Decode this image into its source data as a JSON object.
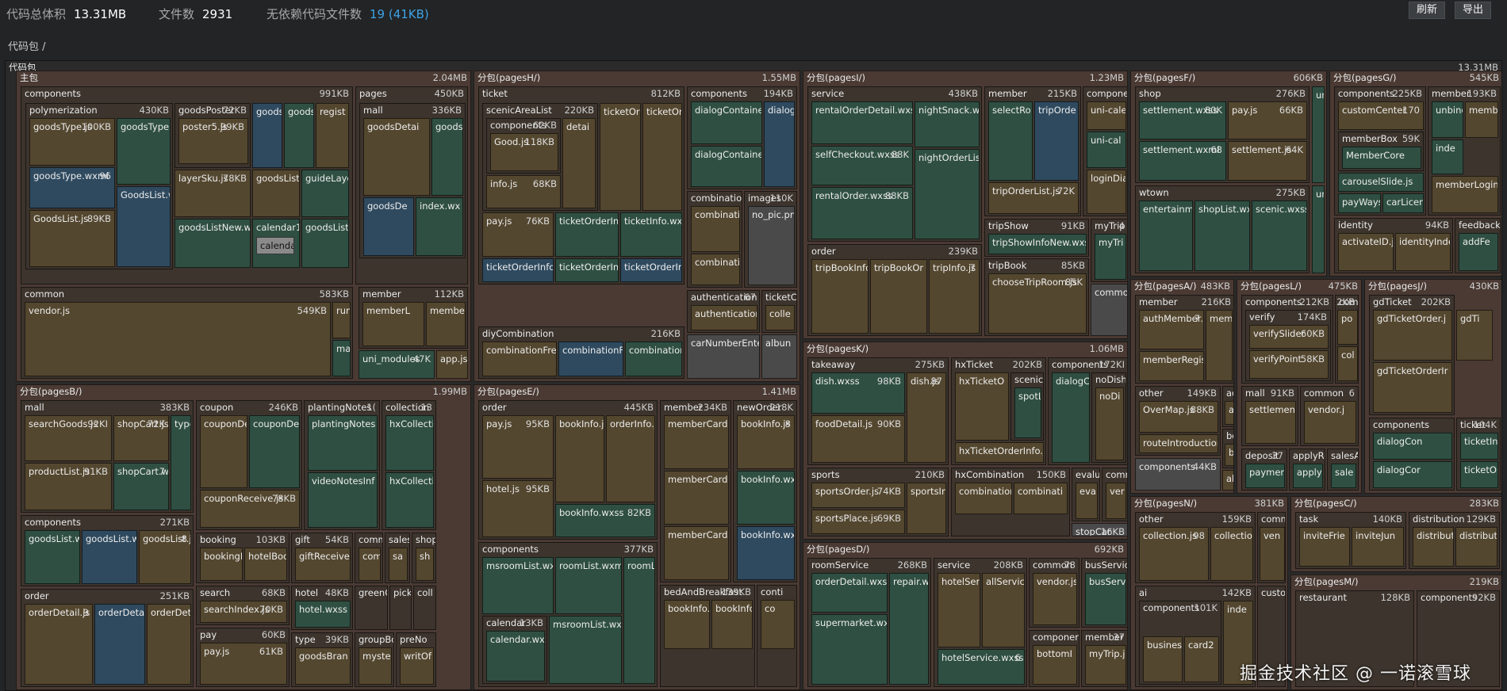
{
  "header": {
    "total_label": "代码总体积",
    "total_value": "13.31MB",
    "files_label": "文件数",
    "files_value": "2931",
    "nodep_label": "无依赖代码文件数",
    "nodep_value": "19 (41KB)",
    "refresh": "刷新",
    "export": "导出"
  },
  "breadcrumb": "代码包 /",
  "root": {
    "name": "代码包",
    "size": "13.31MB"
  },
  "colors": {
    "green": "#2f4f43",
    "ochre": "#54472f",
    "blue": "#2f4a5f",
    "frame_main": "#4a3a33",
    "frame_sub": "#3c342d"
  },
  "packages": [
    {
      "id": "main",
      "name": "主包",
      "size": "2.04MB"
    },
    {
      "id": "pagesH",
      "name": "分包(pagesH/)",
      "size": "1.55MB"
    },
    {
      "id": "pagesI",
      "name": "分包(pagesI/)",
      "size": "1.23MB"
    },
    {
      "id": "pagesF",
      "name": "分包(pagesF/)",
      "size": "606KB"
    },
    {
      "id": "pagesG",
      "name": "分包(pagesG/)",
      "size": "545KB"
    },
    {
      "id": "pagesB",
      "name": "分包(pagesB/)",
      "size": "1.99MB"
    },
    {
      "id": "pagesE",
      "name": "分包(pagesE/)",
      "size": "1.41MB"
    },
    {
      "id": "pagesK",
      "name": "分包(pagesK/)",
      "size": "1.06MB"
    },
    {
      "id": "pagesD",
      "name": "分包(pagesD/)",
      "size": "692KB"
    },
    {
      "id": "pagesA",
      "name": "分包(pagesA/)",
      "size": "483KB"
    },
    {
      "id": "pagesL",
      "name": "分包(pagesL/)",
      "size": "475KB"
    },
    {
      "id": "pagesJ",
      "name": "分包(pagesJ/)",
      "size": "430KB"
    },
    {
      "id": "pagesN",
      "name": "分包(pagesN/)",
      "size": "381KB"
    },
    {
      "id": "pagesC",
      "name": "分包(pagesC/)",
      "size": "283KB"
    },
    {
      "id": "pagesM",
      "name": "分包(pagesM/)",
      "size": "219KB"
    }
  ],
  "groups": [
    {
      "name": "components",
      "size": "991KB"
    },
    {
      "name": "polymerization",
      "size": "430KB"
    },
    {
      "name": "goodsPoster",
      "size": "72KB"
    },
    {
      "name": "common",
      "size": "583KB"
    },
    {
      "name": "pages",
      "size": "450KB"
    },
    {
      "name": "mall",
      "size": "336KB"
    },
    {
      "name": "member",
      "size": "112KB"
    },
    {
      "name": "ticket",
      "size": "812KB"
    },
    {
      "name": "scenicAreaList",
      "size": "220KB"
    },
    {
      "name": "components",
      "size": "62KB"
    },
    {
      "name": "components",
      "size": "194KB"
    },
    {
      "name": "combination",
      "size": ""
    },
    {
      "name": "images",
      "size": "110K"
    },
    {
      "name": "authentication",
      "size": "67"
    },
    {
      "name": "ticketC",
      "size": ""
    },
    {
      "name": "diyCombination",
      "size": "216KB"
    },
    {
      "name": "service",
      "size": "438KB"
    },
    {
      "name": "member",
      "size": "215KB"
    },
    {
      "name": "component",
      "size": ""
    },
    {
      "name": "order",
      "size": "239KB"
    },
    {
      "name": "tripShow",
      "size": "91KB"
    },
    {
      "name": "myTrip",
      "size": "4"
    },
    {
      "name": "tripBook",
      "size": "85KB"
    },
    {
      "name": "shop",
      "size": "276KB"
    },
    {
      "name": "wtown",
      "size": "275KB"
    },
    {
      "name": "components",
      "size": "225KB"
    },
    {
      "name": "memberBox",
      "size": "59K"
    },
    {
      "name": "member",
      "size": "193KB"
    },
    {
      "name": "identity",
      "size": "94KB"
    },
    {
      "name": "feedback",
      "size": ""
    },
    {
      "name": "mall",
      "size": "383KB"
    },
    {
      "name": "coupon",
      "size": "246KB"
    },
    {
      "name": "plantingNotes",
      "size": "1("
    },
    {
      "name": "collection",
      "size": "13"
    },
    {
      "name": "components",
      "size": "271KB"
    },
    {
      "name": "booking",
      "size": "103KB"
    },
    {
      "name": "gift",
      "size": "54KB"
    },
    {
      "name": "comm",
      "size": ""
    },
    {
      "name": "sales",
      "size": ""
    },
    {
      "name": "shop",
      "size": ""
    },
    {
      "name": "search",
      "size": "68KB"
    },
    {
      "name": "hotel",
      "size": "48KB"
    },
    {
      "name": "greenCl",
      "size": ""
    },
    {
      "name": "pick",
      "size": ""
    },
    {
      "name": "coll",
      "size": ""
    },
    {
      "name": "order",
      "size": "251KB"
    },
    {
      "name": "pay",
      "size": "60KB"
    },
    {
      "name": "type",
      "size": "39KB"
    },
    {
      "name": "groupBo",
      "size": ""
    },
    {
      "name": "preNo",
      "size": ""
    },
    {
      "name": "order",
      "size": "445KB"
    },
    {
      "name": "member",
      "size": "234KB"
    },
    {
      "name": "newOrder",
      "size": "218K"
    },
    {
      "name": "components",
      "size": "377KB"
    },
    {
      "name": "calendar",
      "size": "13KB"
    },
    {
      "name": "bedAndBreakfast",
      "size": "139KB"
    },
    {
      "name": "conti",
      "size": ""
    },
    {
      "name": "takeaway",
      "size": "275KB"
    },
    {
      "name": "hxTicket",
      "size": "202KB"
    },
    {
      "name": "scenicS",
      "size": ""
    },
    {
      "name": "components",
      "size": "172KI"
    },
    {
      "name": "noDish",
      "size": ""
    },
    {
      "name": "sports",
      "size": "210KB"
    },
    {
      "name": "hxCombination",
      "size": "150KB"
    },
    {
      "name": "evalu",
      "size": ""
    },
    {
      "name": "comm",
      "size": ""
    },
    {
      "name": "roomService",
      "size": "268KB"
    },
    {
      "name": "service",
      "size": "208KB"
    },
    {
      "name": "common",
      "size": "78"
    },
    {
      "name": "busServic",
      "size": ""
    },
    {
      "name": "componer",
      "size": ""
    },
    {
      "name": "member",
      "size": "37"
    },
    {
      "name": "member",
      "size": "216KB"
    },
    {
      "name": "other",
      "size": "149KB"
    },
    {
      "name": "addre",
      "size": ""
    },
    {
      "name": "booke",
      "size": ""
    },
    {
      "name": "components",
      "size": "212KB"
    },
    {
      "name": "verify",
      "size": "174KB"
    },
    {
      "name": "mall",
      "size": "91KB"
    },
    {
      "name": "common",
      "size": "6"
    },
    {
      "name": "deposit",
      "size": "37"
    },
    {
      "name": "applyRe",
      "size": ""
    },
    {
      "name": "salesA",
      "size": ""
    },
    {
      "name": "gdTicket",
      "size": "202KB"
    },
    {
      "name": "components",
      "size": ""
    },
    {
      "name": "ticket",
      "size": "104K"
    },
    {
      "name": "other",
      "size": "159KB"
    },
    {
      "name": "comm",
      "size": ""
    },
    {
      "name": "ai",
      "size": "142KB"
    },
    {
      "name": "components",
      "size": "101K"
    },
    {
      "name": "custo",
      "size": ""
    },
    {
      "name": "task",
      "size": "140KB"
    },
    {
      "name": "distribution",
      "size": "129KB"
    },
    {
      "name": "restaurant",
      "size": "128KB"
    },
    {
      "name": "components",
      "size": "92KB"
    }
  ],
  "leaves": [
    {
      "name": "goodsType.js",
      "size": "100KB"
    },
    {
      "name": "goodsType",
      "size": ""
    },
    {
      "name": "goodsType.wxml",
      "size": "96"
    },
    {
      "name": "GoodsList.w",
      "size": ""
    },
    {
      "name": "GoodsList.js",
      "size": "89KB"
    },
    {
      "name": "poster5.js",
      "size": "99KB"
    },
    {
      "name": "layerSku.js",
      "size": "78KB"
    },
    {
      "name": "goodsListNew.wx",
      "size": ""
    },
    {
      "name": "goods",
      "size": ""
    },
    {
      "name": "goods",
      "size": ""
    },
    {
      "name": "regist",
      "size": ""
    },
    {
      "name": "goodsList",
      "size": ""
    },
    {
      "name": "guideLaye",
      "size": ""
    },
    {
      "name": "calendar1",
      "size": ""
    },
    {
      "name": "calenda",
      "size": ""
    },
    {
      "name": "goodsList",
      "size": ""
    },
    {
      "name": "vendor.js",
      "size": "549KB"
    },
    {
      "name": "run",
      "size": ""
    },
    {
      "name": "ma",
      "size": ""
    },
    {
      "name": "goodsDetai",
      "size": ""
    },
    {
      "name": "goods",
      "size": ""
    },
    {
      "name": "goodsDe",
      "size": ""
    },
    {
      "name": "index.wx",
      "size": ""
    },
    {
      "name": "memberL",
      "size": ""
    },
    {
      "name": "membe",
      "size": ""
    },
    {
      "name": "uni_modules",
      "size": "47K"
    },
    {
      "name": "app.js",
      "size": ""
    },
    {
      "name": "Good.js",
      "size": "118KB"
    },
    {
      "name": "detai",
      "size": ""
    },
    {
      "name": "info.js",
      "size": "68KB"
    },
    {
      "name": "ticketOrd",
      "size": ""
    },
    {
      "name": "ticketOr",
      "size": ""
    },
    {
      "name": "pay.js",
      "size": "76KB"
    },
    {
      "name": "ticketOrderInf",
      "size": ""
    },
    {
      "name": "ticketInfo.wx",
      "size": ""
    },
    {
      "name": "ticketOrderInfo",
      "size": ""
    },
    {
      "name": "ticketOrderInf",
      "size": ""
    },
    {
      "name": "ticketOrderIn",
      "size": ""
    },
    {
      "name": "dialogContaine",
      "size": ""
    },
    {
      "name": "dialog",
      "size": ""
    },
    {
      "name": "dialogContaine",
      "size": ""
    },
    {
      "name": "combinati",
      "size": ""
    },
    {
      "name": "combinati",
      "size": ""
    },
    {
      "name": "no_pic.pn",
      "size": ""
    },
    {
      "name": "authentication.",
      "size": ""
    },
    {
      "name": "colle",
      "size": ""
    },
    {
      "name": "carNumberEnter",
      "size": ""
    },
    {
      "name": "albun",
      "size": ""
    },
    {
      "name": "combinationFree",
      "size": ""
    },
    {
      "name": "combinationFr",
      "size": ""
    },
    {
      "name": "combination",
      "size": ""
    },
    {
      "name": "rentalOrderDetail.wxss",
      "size": ""
    },
    {
      "name": "nightSnack.wx",
      "size": ""
    },
    {
      "name": "selfCheckout.wxss",
      "size": "88K"
    },
    {
      "name": "nightOrderLis",
      "size": ""
    },
    {
      "name": "rentalOrder.wxss",
      "size": "88KB"
    },
    {
      "name": "selectRo",
      "size": ""
    },
    {
      "name": "tripOrde",
      "size": ""
    },
    {
      "name": "tripOrderList.js",
      "size": "72K"
    },
    {
      "name": "uni-calen",
      "size": ""
    },
    {
      "name": "uni-cal",
      "size": ""
    },
    {
      "name": "loginDial",
      "size": ""
    },
    {
      "name": "tripBookInfo",
      "size": ""
    },
    {
      "name": "tripBookOr",
      "size": ""
    },
    {
      "name": "tripInfo.js",
      "size": "7"
    },
    {
      "name": "tripShowInfoNew.wxss",
      "size": ""
    },
    {
      "name": "myTri",
      "size": ""
    },
    {
      "name": "chooseTripRoom.js",
      "size": "85K"
    },
    {
      "name": "commo",
      "size": ""
    },
    {
      "name": "settlement.wxss",
      "size": "80K"
    },
    {
      "name": "pay.js",
      "size": "66KB"
    },
    {
      "name": "settlement.wxml",
      "size": "68"
    },
    {
      "name": "settlement.js",
      "size": "64K"
    },
    {
      "name": "entertainm",
      "size": ""
    },
    {
      "name": "shopList.wx",
      "size": ""
    },
    {
      "name": "scenic.wxss",
      "size": ""
    },
    {
      "name": "customCenter",
      "size": "170"
    },
    {
      "name": "MemberCore",
      "size": ""
    },
    {
      "name": "carouselSlide.js",
      "size": ""
    },
    {
      "name": "payWays",
      "size": ""
    },
    {
      "name": "carLicen",
      "size": ""
    },
    {
      "name": "unbind",
      "size": ""
    },
    {
      "name": "memb",
      "size": ""
    },
    {
      "name": "inde",
      "size": ""
    },
    {
      "name": "memberLogin.j",
      "size": ""
    },
    {
      "name": "activateID.js",
      "size": ""
    },
    {
      "name": "identityInde",
      "size": ""
    },
    {
      "name": "addFe",
      "size": ""
    },
    {
      "name": "searchGoods.js",
      "size": "92KI"
    },
    {
      "name": "shopCart.js",
      "size": "72K"
    },
    {
      "name": "typeL",
      "size": ""
    },
    {
      "name": "productList.js",
      "size": "91KB"
    },
    {
      "name": "shopCart.wxss",
      "size": "7"
    },
    {
      "name": "couponDe",
      "size": ""
    },
    {
      "name": "couponDe",
      "size": ""
    },
    {
      "name": "couponReceive.js",
      "size": "78KB"
    },
    {
      "name": "plantingNotes",
      "size": ""
    },
    {
      "name": "videoNotesInf",
      "size": ""
    },
    {
      "name": "hxCollectio",
      "size": ""
    },
    {
      "name": "hxCollectio",
      "size": ""
    },
    {
      "name": "goodsList.wxss",
      "size": ""
    },
    {
      "name": "goodsList.wx",
      "size": ""
    },
    {
      "name": "goodsList.js",
      "size": "8"
    },
    {
      "name": "bookingI",
      "size": ""
    },
    {
      "name": "hotelBoo",
      "size": ""
    },
    {
      "name": "giftReceive",
      "size": ""
    },
    {
      "name": "com",
      "size": ""
    },
    {
      "name": "sa",
      "size": ""
    },
    {
      "name": "sh",
      "size": ""
    },
    {
      "name": "searchIndex.js",
      "size": "70KB"
    },
    {
      "name": "hotel.wxss",
      "size": ""
    },
    {
      "name": "orderDetail.js",
      "size": "9"
    },
    {
      "name": "orderDetail.w",
      "size": ""
    },
    {
      "name": "orderDetail.",
      "size": ""
    },
    {
      "name": "pay.js",
      "size": "61KB"
    },
    {
      "name": "goodsBran",
      "size": ""
    },
    {
      "name": "mystery",
      "size": ""
    },
    {
      "name": "writOf",
      "size": ""
    },
    {
      "name": "pay.js",
      "size": "95KB"
    },
    {
      "name": "bookInfo.js",
      "size": ""
    },
    {
      "name": "orderInfo.j",
      "size": ""
    },
    {
      "name": "hotel.js",
      "size": "95KB"
    },
    {
      "name": "bookInfo.wxss",
      "size": "82KB"
    },
    {
      "name": "memberCard",
      "size": ""
    },
    {
      "name": "memberCard",
      "size": ""
    },
    {
      "name": "memberCard",
      "size": ""
    },
    {
      "name": "bookInfo.js",
      "size": "8"
    },
    {
      "name": "bookInfo.wx",
      "size": ""
    },
    {
      "name": "bookInfo.wx",
      "size": ""
    },
    {
      "name": "msroomList.wxss",
      "size": ""
    },
    {
      "name": "roomList.wxml",
      "size": ""
    },
    {
      "name": "roomL",
      "size": ""
    },
    {
      "name": "calendar.wxss",
      "size": ""
    },
    {
      "name": "msroomList.wx",
      "size": ""
    },
    {
      "name": "bookInfo.js",
      "size": ""
    },
    {
      "name": "bookInfo.",
      "size": ""
    },
    {
      "name": "co",
      "size": ""
    },
    {
      "name": "dish.wxss",
      "size": "98KB"
    },
    {
      "name": "dish.js",
      "size": "87"
    },
    {
      "name": "foodDetail.js",
      "size": "90KB"
    },
    {
      "name": "hxTicketO",
      "size": ""
    },
    {
      "name": "spotL",
      "size": ""
    },
    {
      "name": "hxTicketOrderInfo.j",
      "size": ""
    },
    {
      "name": "dialogC",
      "size": ""
    },
    {
      "name": "noDi",
      "size": ""
    },
    {
      "name": "sportsOrder.js",
      "size": "74KB"
    },
    {
      "name": "sportsInf",
      "size": ""
    },
    {
      "name": "sportsPlace.js",
      "size": "69KB"
    },
    {
      "name": "combination",
      "size": ""
    },
    {
      "name": "combinati",
      "size": ""
    },
    {
      "name": "eva",
      "size": ""
    },
    {
      "name": "ver",
      "size": ""
    },
    {
      "name": "stopCar",
      "size": "16KB"
    },
    {
      "name": "orderDetail.wxss",
      "size": ""
    },
    {
      "name": "repair.w",
      "size": ""
    },
    {
      "name": "supermarket.wxs",
      "size": ""
    },
    {
      "name": "hotelServ",
      "size": ""
    },
    {
      "name": "allServic",
      "size": ""
    },
    {
      "name": "hotelService.wxss",
      "size": "6"
    },
    {
      "name": "vendor.js",
      "size": ""
    },
    {
      "name": "busServ",
      "size": ""
    },
    {
      "name": "bottomI",
      "size": ""
    },
    {
      "name": "myTrip.js",
      "size": ""
    },
    {
      "name": "authMember.js",
      "size": "7"
    },
    {
      "name": "membe",
      "size": ""
    },
    {
      "name": "memberRegister",
      "size": ""
    },
    {
      "name": "OverMap.js",
      "size": "88KB"
    },
    {
      "name": "routeIntroduction",
      "size": ""
    },
    {
      "name": "add",
      "size": ""
    },
    {
      "name": "boo",
      "size": ""
    },
    {
      "name": "about",
      "size": ""
    },
    {
      "name": "components",
      "size": "44KB"
    },
    {
      "name": "verifySlider",
      "size": "60KB"
    },
    {
      "name": "verifyPoint",
      "size": "58KB"
    },
    {
      "name": "po",
      "size": ""
    },
    {
      "name": "col",
      "size": ""
    },
    {
      "name": "settlement.js",
      "size": ""
    },
    {
      "name": "vendor.j",
      "size": ""
    },
    {
      "name": "paymen",
      "size": ""
    },
    {
      "name": "apply",
      "size": ""
    },
    {
      "name": "sale",
      "size": ""
    },
    {
      "name": "gdTicketOrder.j",
      "size": ""
    },
    {
      "name": "gdTi",
      "size": ""
    },
    {
      "name": "gdTicketOrderIr",
      "size": ""
    },
    {
      "name": "dialogCon",
      "size": ""
    },
    {
      "name": "dialogCor",
      "size": ""
    },
    {
      "name": "ticketInf",
      "size": ""
    },
    {
      "name": "ticketOr",
      "size": ""
    },
    {
      "name": "collection.js",
      "size": "98"
    },
    {
      "name": "collectio",
      "size": ""
    },
    {
      "name": "ven",
      "size": ""
    },
    {
      "name": "inde",
      "size": ""
    },
    {
      "name": "business",
      "size": ""
    },
    {
      "name": "card2",
      "size": ""
    },
    {
      "name": "inviteFrie",
      "size": ""
    },
    {
      "name": "inviteJun",
      "size": ""
    },
    {
      "name": "distribut",
      "size": ""
    },
    {
      "name": "distribut",
      "size": ""
    }
  ],
  "watermark": "掘金技术社区 @ 一诺滚雪球"
}
